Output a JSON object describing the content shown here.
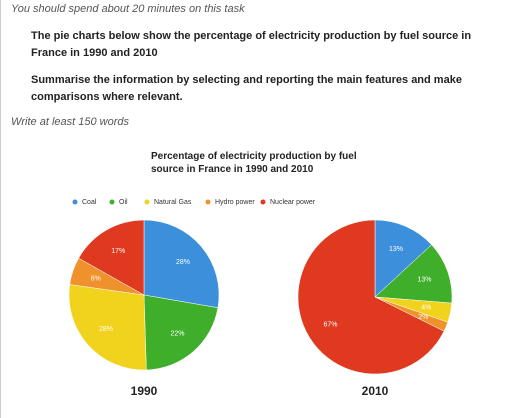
{
  "instruction": "You should spend about 20 minutes on this task",
  "task": [
    "The pie charts below show the percentage of electricity production by fuel source in France in 1990 and 2010",
    "Summarise the information by selecting and reporting the main features and make comparisons where relevant."
  ],
  "word_limit": "Write at least 150 words",
  "figure_title": "Percentage of electricity production by fuel source in France in 1990 and 2010",
  "chart_data": [
    {
      "type": "pie",
      "title": "1990",
      "categories": [
        "Coal",
        "Oil",
        "Natural Gas",
        "Hydro power",
        "Nuclear power"
      ],
      "values": [
        28,
        22,
        28,
        6,
        17
      ],
      "value_labels": [
        "28%",
        "22%",
        "28%",
        "6%",
        "17%"
      ],
      "colors": [
        "#3b8fdb",
        "#3fae2b",
        "#f1d21c",
        "#f0922b",
        "#df3a1f"
      ]
    },
    {
      "type": "pie",
      "title": "2010",
      "categories": [
        "Coal",
        "Oil",
        "Natural Gas",
        "Hydro power",
        "Nuclear power"
      ],
      "values": [
        13,
        13,
        4,
        2,
        67
      ],
      "value_labels": [
        "13%",
        "13%",
        "4%",
        "2%",
        "67%"
      ],
      "colors": [
        "#3b8fdb",
        "#3fae2b",
        "#f1d21c",
        "#f0922b",
        "#df3a1f"
      ]
    }
  ]
}
